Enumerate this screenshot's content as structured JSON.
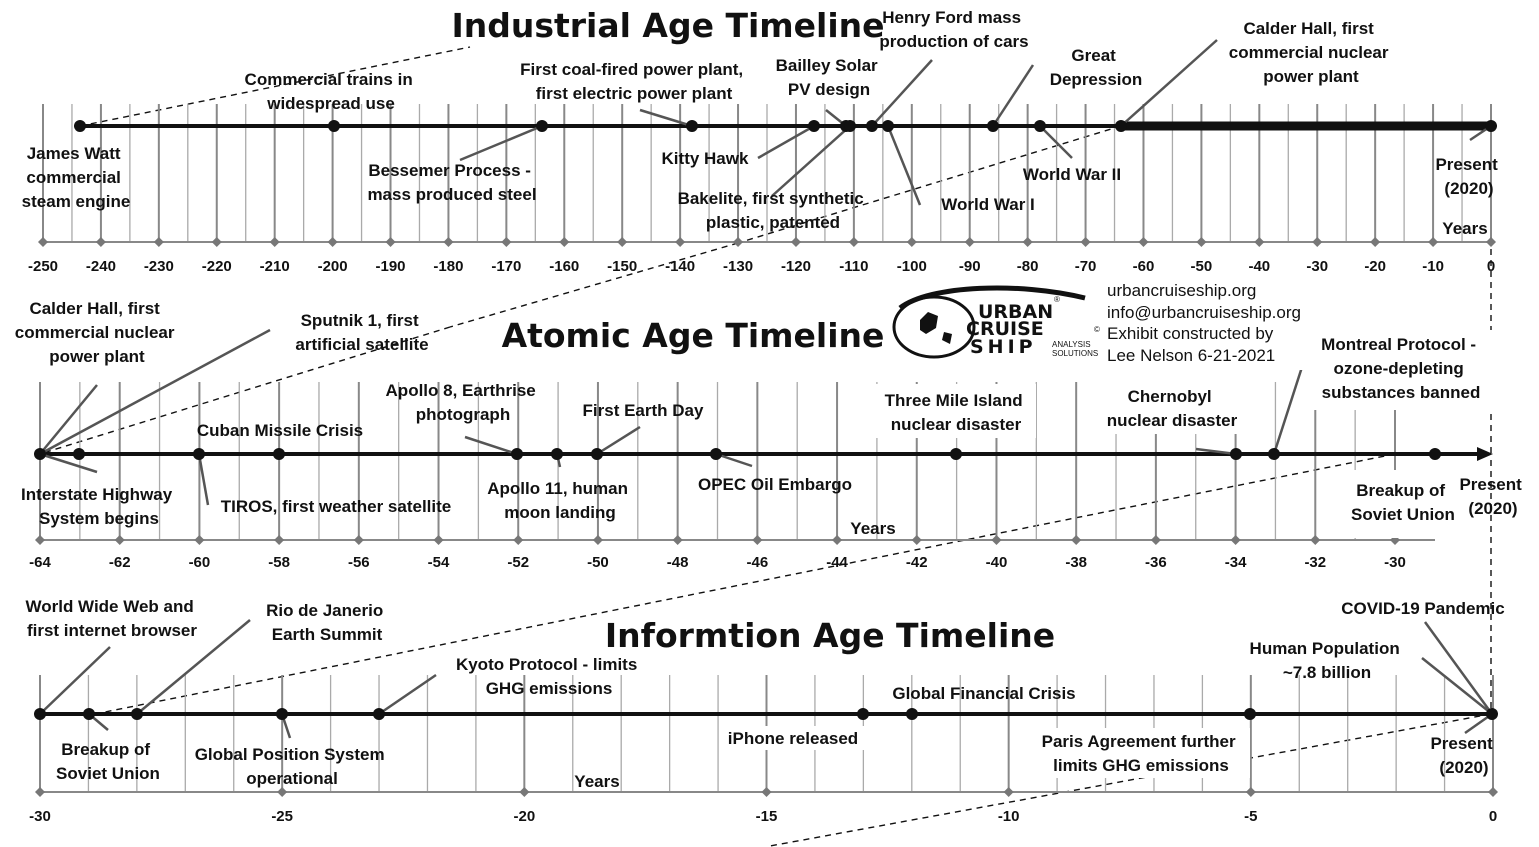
{
  "colors": {
    "ink": "#111111",
    "grid": "#999999",
    "axis_gray": "#888888",
    "background": "#ffffff"
  },
  "timelines": [
    {
      "title": "Industrial Age Timeline",
      "years_label": "Years",
      "ticks": [
        "-250",
        "-240",
        "-230",
        "-220",
        "-210",
        "-200",
        "-190",
        "-180",
        "-170",
        "-160",
        "-150",
        "-140",
        "-130",
        "-120",
        "-110",
        "-100",
        "-90",
        "-80",
        "-70",
        "-60",
        "-50",
        "-40",
        "-30",
        "-20",
        "-10",
        "0"
      ],
      "events": [
        {
          "label": [
            "James Watt",
            "commercial",
            "steam engine"
          ],
          "year": -245
        },
        {
          "label": [
            "Commercial trains in",
            "widespread use"
          ],
          "year": -200
        },
        {
          "label": [
            "Bessemer Process -",
            "mass produced steel"
          ],
          "year": -164
        },
        {
          "label": [
            "First coal-fired power plant,",
            "first electric power plant"
          ],
          "year": -138
        },
        {
          "label": [
            "Kitty Hawk"
          ],
          "year": -117
        },
        {
          "label": [
            "Bailley Solar",
            "PV design"
          ],
          "year": -111
        },
        {
          "label": [
            "Bakelite, first synthetic",
            "plastic, patented"
          ],
          "year": -110
        },
        {
          "label": [
            "Henry Ford mass",
            "production of cars"
          ],
          "year": -107
        },
        {
          "label": [
            "World War I"
          ],
          "year": -105
        },
        {
          "label": [
            "Great",
            "Depression"
          ],
          "year": -86
        },
        {
          "label": [
            "World War II"
          ],
          "year": -78
        },
        {
          "label": [
            "Calder Hall, first",
            "commercial nuclear",
            "power plant"
          ],
          "year": -64
        },
        {
          "label": [
            "Present",
            "(2020)"
          ],
          "year": 0
        }
      ]
    },
    {
      "title": "Atomic Age Timeline",
      "years_label": "Years",
      "ticks": [
        "-64",
        "-62",
        "-60",
        "-58",
        "-56",
        "-54",
        "-52",
        "-50",
        "-48",
        "-46",
        "-44",
        "-42",
        "-40",
        "-38",
        "-36",
        "-34",
        "-32",
        "-30"
      ],
      "events": [
        {
          "label": [
            "Calder Hall, first",
            "commercial nuclear",
            "power plant"
          ],
          "year": -64
        },
        {
          "label": [
            "Interstate Highway",
            "System begins"
          ],
          "year": -63
        },
        {
          "label": [
            "Sputnik 1, first",
            "artificial satellite"
          ],
          "year": -63
        },
        {
          "label": [
            "Cuban Missile Crisis"
          ],
          "year": -58
        },
        {
          "label": [
            "TIROS, first weather satellite"
          ],
          "year": -60
        },
        {
          "label": [
            "Apollo 8, Earthrise",
            "photograph"
          ],
          "year": -52
        },
        {
          "label": [
            "Apollo 11, human",
            "moon landing"
          ],
          "year": -51
        },
        {
          "label": [
            "First Earth Day"
          ],
          "year": -50
        },
        {
          "label": [
            "OPEC Oil Embargo"
          ],
          "year": -47
        },
        {
          "label": [
            "Three Mile Island",
            "nuclear disaster"
          ],
          "year": -41
        },
        {
          "label": [
            "Chernobyl",
            "nuclear disaster"
          ],
          "year": -34
        },
        {
          "label": [
            "Montreal Protocol -",
            "ozone-depleting",
            "substances banned"
          ],
          "year": -33
        },
        {
          "label": [
            "Breakup of",
            "Soviet Union"
          ],
          "year": -29
        },
        {
          "label": [
            "Present",
            "(2020)"
          ],
          "year": 0
        }
      ]
    },
    {
      "title": "Informtion Age Timeline",
      "years_label": "Years",
      "ticks": [
        "-30",
        "-25",
        "-20",
        "-15",
        "-10",
        "-5",
        "0"
      ],
      "events": [
        {
          "label": [
            "World Wide Web and",
            "first internet browser"
          ],
          "year": -30
        },
        {
          "label": [
            "Breakup of",
            "Soviet Union"
          ],
          "year": -29
        },
        {
          "label": [
            "Rio de Janerio",
            "Earth Summit"
          ],
          "year": -28
        },
        {
          "label": [
            "Global Position System",
            "operational"
          ],
          "year": -25
        },
        {
          "label": [
            "Kyoto Protocol - limits",
            "GHG emissions"
          ],
          "year": -23
        },
        {
          "label": [
            "iPhone released"
          ],
          "year": -13
        },
        {
          "label": [
            "Global Financial Crisis"
          ],
          "year": -12
        },
        {
          "label": [
            "Paris Agreement further",
            "limits GHG emissions"
          ],
          "year": -5
        },
        {
          "label": [
            "COVID-19 Pandemic"
          ],
          "year": 0
        },
        {
          "label": [
            "Human Population",
            "~7.8 billion"
          ],
          "year": 0
        },
        {
          "label": [
            "Present",
            "(2020)"
          ],
          "year": 0
        }
      ]
    }
  ],
  "info_block": {
    "logo": {
      "line1": "URBAN",
      "line2": "CRUISE",
      "line3": "SHIP",
      "sub1": "ANALYSIS",
      "sub2": "SOLUTIONS",
      "mark_r": "®",
      "mark_c": "©"
    },
    "website": "urbancruiseship.org",
    "email": "info@urbancruiseship.org",
    "credit": "Exhibit constructed by",
    "author": "Lee Nelson 6-21-2021"
  }
}
